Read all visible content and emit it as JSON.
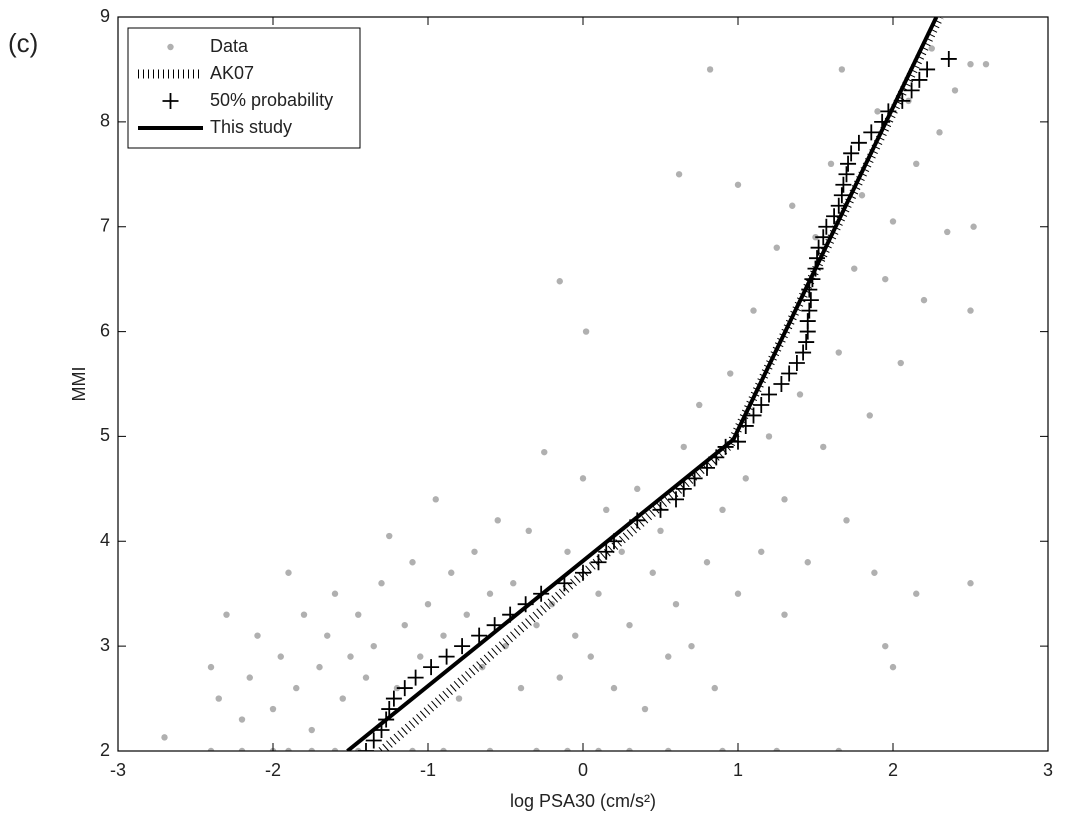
{
  "chart_data": {
    "type": "scatter",
    "panel_label": "(c)",
    "xlabel": "log PSA30 (cm/s²)",
    "ylabel": "MMI",
    "xlim": [
      -3,
      3
    ],
    "ylim": [
      2,
      9
    ],
    "xticks": [
      -3,
      -2,
      -1,
      0,
      1,
      2,
      3
    ],
    "yticks": [
      2,
      3,
      4,
      5,
      6,
      7,
      8,
      9
    ],
    "legend": "upper left",
    "series": [
      {
        "name": "Data",
        "style": "dot",
        "color": "#b0b0b0",
        "x": [
          -2.4,
          -2.2,
          -2.0,
          -1.9,
          -1.75,
          -1.6,
          -1.45,
          -1.1,
          -0.9,
          -0.6,
          -0.3,
          -0.1,
          0.1,
          0.3,
          0.55,
          0.9,
          1.25,
          1.65,
          -2.7,
          -2.4,
          -2.35,
          -2.3,
          -2.2,
          -2.15,
          -2.1,
          -2.0,
          -1.95,
          -1.9,
          -1.85,
          -1.8,
          -1.75,
          -1.7,
          -1.65,
          -1.6,
          -1.55,
          -1.5,
          -1.45,
          -1.4,
          -1.35,
          -1.3,
          -1.25,
          -1.2,
          -1.15,
          -1.1,
          -1.05,
          -1.0,
          -0.95,
          -0.9,
          -0.85,
          -0.8,
          -0.75,
          -0.7,
          -0.65,
          -0.6,
          -0.55,
          -0.5,
          -0.45,
          -0.4,
          -0.35,
          -0.3,
          -0.25,
          -0.2,
          -0.15,
          -0.1,
          -0.05,
          0.0,
          0.02,
          -0.15,
          0.05,
          0.1,
          0.15,
          0.2,
          0.25,
          0.3,
          0.35,
          0.4,
          0.45,
          0.5,
          0.55,
          0.6,
          0.62,
          0.65,
          0.7,
          0.75,
          0.8,
          0.82,
          0.85,
          0.9,
          0.95,
          1.0,
          1.0,
          1.05,
          1.1,
          1.15,
          1.2,
          1.25,
          1.3,
          1.3,
          1.35,
          1.4,
          1.45,
          1.5,
          1.55,
          1.6,
          1.65,
          1.67,
          1.7,
          1.75,
          1.8,
          1.85,
          1.88,
          1.9,
          1.95,
          2.0,
          2.05,
          2.1,
          2.15,
          2.2,
          2.25,
          2.3,
          2.35,
          2.4,
          2.5,
          2.52,
          2.5,
          2.6,
          2.5,
          2.0,
          1.95,
          2.15
        ],
        "values": [
          2,
          2,
          2,
          2,
          2,
          2,
          2,
          2,
          2,
          2,
          2,
          2,
          2,
          2,
          2,
          2,
          2,
          2,
          2.13,
          2.8,
          2.5,
          3.3,
          2.3,
          2.7,
          3.1,
          2.4,
          2.9,
          3.7,
          2.6,
          3.3,
          2.2,
          2.8,
          3.1,
          3.5,
          2.5,
          2.9,
          3.3,
          2.7,
          3.0,
          3.6,
          4.05,
          2.6,
          3.2,
          3.8,
          2.9,
          3.4,
          4.4,
          3.1,
          3.7,
          2.5,
          3.3,
          3.9,
          2.8,
          3.5,
          4.2,
          3.0,
          3.6,
          2.6,
          4.1,
          3.2,
          4.85,
          3.4,
          2.7,
          3.9,
          3.1,
          4.6,
          6.0,
          6.48,
          2.9,
          3.5,
          4.3,
          2.6,
          3.9,
          3.2,
          4.5,
          2.4,
          3.7,
          4.1,
          2.9,
          3.4,
          7.5,
          4.9,
          3.0,
          5.3,
          3.8,
          8.5,
          2.6,
          4.3,
          5.6,
          3.5,
          7.4,
          4.6,
          6.2,
          3.9,
          5.0,
          6.8,
          3.3,
          4.4,
          7.2,
          5.4,
          3.8,
          6.9,
          4.9,
          7.6,
          5.8,
          8.5,
          4.2,
          6.6,
          7.3,
          5.2,
          3.7,
          8.1,
          6.5,
          7.05,
          5.7,
          8.2,
          7.6,
          6.3,
          8.7,
          7.9,
          6.95,
          8.3,
          6.2,
          7.0,
          8.55,
          8.55,
          3.6,
          2.8,
          3.0,
          3.5
        ]
      },
      {
        "name": "AK07",
        "style": "hatched",
        "color": "#000000",
        "x": [
          -1.3,
          0.95,
          2.3
        ],
        "values": [
          2.0,
          4.92,
          9.0
        ]
      },
      {
        "name": "50% probability",
        "style": "plus",
        "color": "#000000",
        "x": [
          -1.4,
          -1.35,
          -1.3,
          -1.27,
          -1.25,
          -1.22,
          -1.15,
          -1.08,
          -0.98,
          -0.88,
          -0.78,
          -0.67,
          -0.57,
          -0.47,
          -0.37,
          -0.27,
          -0.12,
          0.0,
          0.1,
          0.15,
          0.2,
          0.35,
          0.5,
          0.6,
          0.65,
          0.72,
          0.8,
          0.86,
          0.92,
          1.0,
          1.05,
          1.1,
          1.15,
          1.2,
          1.28,
          1.33,
          1.38,
          1.42,
          1.44,
          1.45,
          1.45,
          1.46,
          1.47,
          1.46,
          1.48,
          1.5,
          1.51,
          1.52,
          1.55,
          1.57,
          1.62,
          1.65,
          1.67,
          1.68,
          1.7,
          1.71,
          1.73,
          1.78,
          1.86,
          1.93,
          1.97,
          2.06,
          2.12,
          2.17,
          2.22,
          2.36
        ],
        "values": [
          2.0,
          2.1,
          2.2,
          2.3,
          2.4,
          2.5,
          2.6,
          2.7,
          2.8,
          2.9,
          3.0,
          3.1,
          3.2,
          3.3,
          3.4,
          3.5,
          3.6,
          3.7,
          3.8,
          3.9,
          4.0,
          4.2,
          4.3,
          4.4,
          4.5,
          4.6,
          4.7,
          4.8,
          4.9,
          4.95,
          5.1,
          5.2,
          5.3,
          5.4,
          5.5,
          5.6,
          5.7,
          5.8,
          5.9,
          6.0,
          6.1,
          6.2,
          6.3,
          6.4,
          6.5,
          6.6,
          6.7,
          6.8,
          6.9,
          7.0,
          7.1,
          7.2,
          7.3,
          7.4,
          7.5,
          7.6,
          7.7,
          7.8,
          7.9,
          8.0,
          8.1,
          8.2,
          8.3,
          8.4,
          8.5,
          8.6
        ]
      },
      {
        "name": "This study",
        "style": "line",
        "color": "#000000",
        "x": [
          -1.52,
          0.97,
          2.28
        ],
        "values": [
          2.0,
          4.97,
          9.0
        ]
      }
    ]
  }
}
